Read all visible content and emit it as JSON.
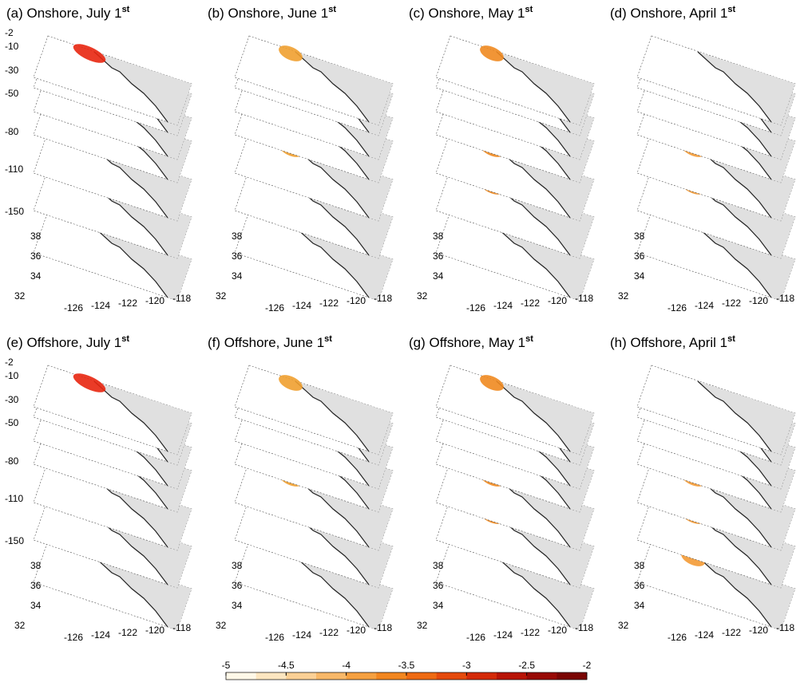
{
  "panels": [
    {
      "title": "(a) Onshore, July 1",
      "sup": "st"
    },
    {
      "title": "(b) Onshore, June 1",
      "sup": "st"
    },
    {
      "title": "(c) Onshore, May 1",
      "sup": "st"
    },
    {
      "title": "(d) Onshore, April 1",
      "sup": "st"
    },
    {
      "title": "(e) Offshore, July 1",
      "sup": "st"
    },
    {
      "title": "(f) Offshore, June 1",
      "sup": "st"
    },
    {
      "title": "(g) Offshore, May 1",
      "sup": "st"
    },
    {
      "title": "(h) Offshore, April 1",
      "sup": "st"
    }
  ],
  "depth_labels": [
    -2,
    -10,
    -30,
    -50,
    -80,
    -110,
    -150
  ],
  "lat_labels": [
    38,
    36,
    34,
    32
  ],
  "lon_labels": [
    -126,
    -124,
    -122,
    -120,
    -118
  ],
  "colorbar_ticks": [
    -5,
    -4.5,
    -4,
    -3.5,
    -3,
    -2.5,
    -2
  ]
}
